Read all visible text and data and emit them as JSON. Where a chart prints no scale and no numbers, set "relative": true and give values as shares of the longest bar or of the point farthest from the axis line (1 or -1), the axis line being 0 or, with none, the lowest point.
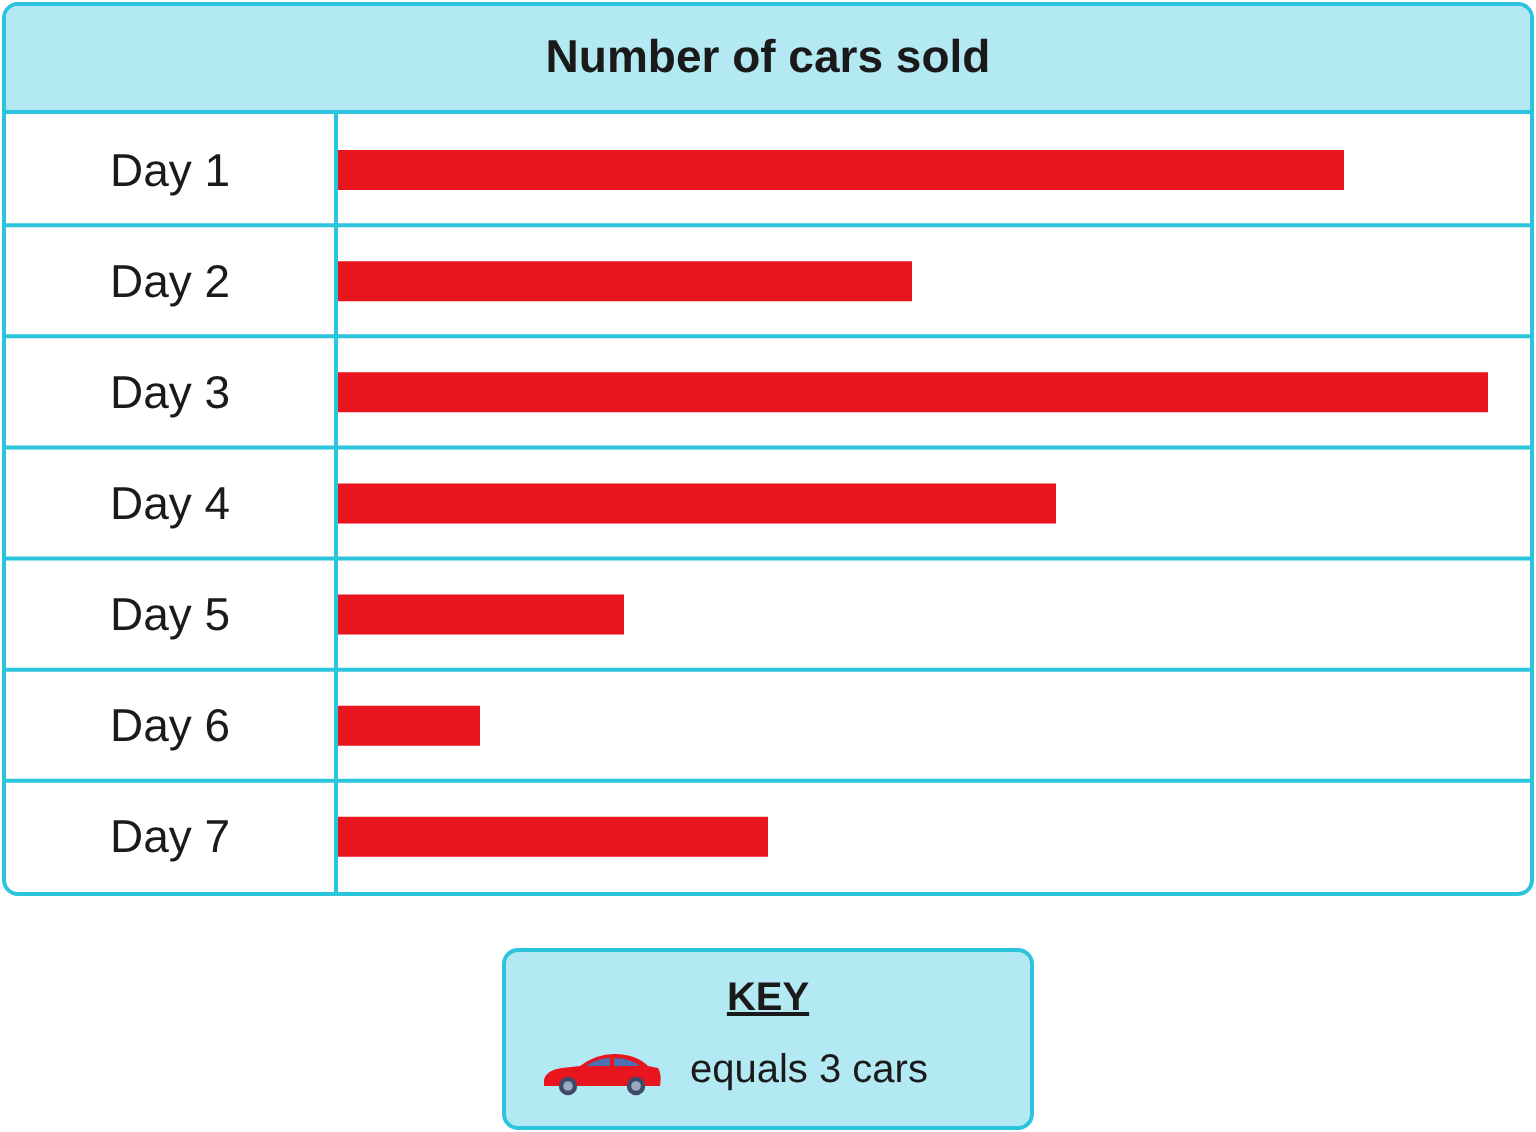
{
  "chart_data": {
    "type": "bar",
    "orientation": "horizontal",
    "relative": true,
    "title": "Number of cars sold",
    "categories": [
      "Day 1",
      "Day 2",
      "Day 3",
      "Day 4",
      "Day 5",
      "Day 6",
      "Day 7"
    ],
    "values": [
      0.875,
      0.5,
      1,
      0.625,
      0.25,
      0.125,
      0.375
    ],
    "color": "#e8141e",
    "grid": "y",
    "annotations": [
      "KEY",
      "equals 3 cars"
    ]
  }
}
